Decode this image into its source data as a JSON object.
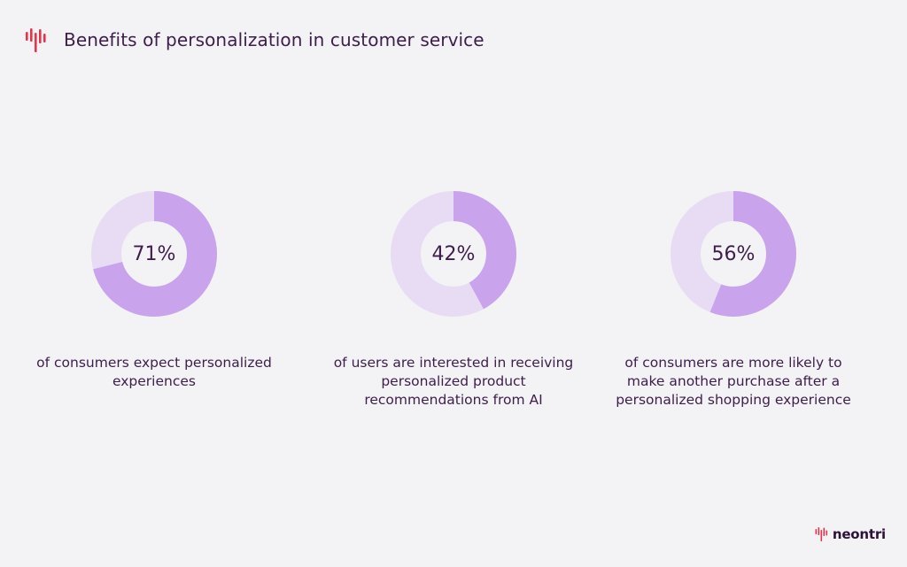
{
  "header": {
    "title": "Benefits of personalization in customer service"
  },
  "brand": {
    "name": "neontri"
  },
  "colors": {
    "accent": "#c9a3ec",
    "track": "#e8dcf4",
    "logo": "#e8344a",
    "text": "#3d1e4a"
  },
  "chart_data": [
    {
      "type": "pie",
      "subtype": "donut",
      "values": [
        71,
        29
      ],
      "label": "71%",
      "caption": "of consumers expect personalized experiences"
    },
    {
      "type": "pie",
      "subtype": "donut",
      "values": [
        42,
        58
      ],
      "label": "42%",
      "caption": "of users are interested in receiving personalized product recommendations from AI"
    },
    {
      "type": "pie",
      "subtype": "donut",
      "values": [
        56,
        44
      ],
      "label": "56%",
      "caption": "of consumers are more likely to make another purchase after a personalized shopping experience"
    }
  ]
}
